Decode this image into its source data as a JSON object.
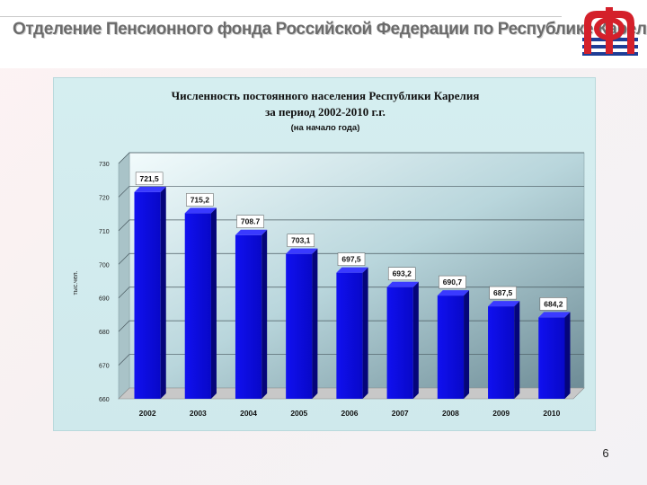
{
  "header": {
    "title": "Отделение Пенсионного фонда Российской Федерации по Республике Карелия",
    "logo_name": "pfr-logo",
    "colors": {
      "title": "#6b6b6b",
      "logo_red": "#d4202a",
      "logo_blue": "#1f3e96"
    }
  },
  "page": {
    "number": "6"
  },
  "chart_data": {
    "type": "bar",
    "title_line1": "Численность постоянного населения Республики Карелия",
    "title_line2": "за период 2002-2010 г.г.",
    "subtitle": "(на начало года)",
    "ylabel": "тыс.чел.",
    "xlabel": "",
    "categories": [
      "2002",
      "2003",
      "2004",
      "2005",
      "2006",
      "2007",
      "2008",
      "2009",
      "2010"
    ],
    "values": [
      721.5,
      715.2,
      708.7,
      703.1,
      697.5,
      693.2,
      690.7,
      687.5,
      684.2
    ],
    "data_labels": [
      "721,5",
      "715,2",
      "708.7",
      "703,1",
      "697,5",
      "693,2",
      "690,7",
      "687,5",
      "684,2"
    ],
    "ylim": [
      660,
      730
    ],
    "yticks": [
      660,
      670,
      680,
      690,
      700,
      710,
      720,
      730
    ],
    "grid": true,
    "legend": "none",
    "bar_color": "#0a0ad8",
    "bar_color_dark": "#05057a",
    "background_color": "#d2ecee"
  }
}
